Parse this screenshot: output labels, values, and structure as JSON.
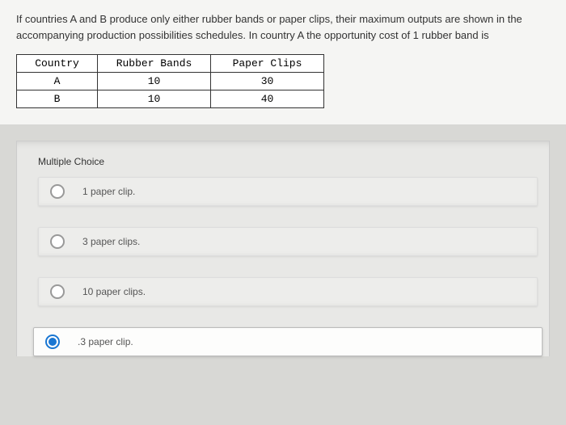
{
  "question": {
    "text": "If countries A and B produce only either rubber bands or paper clips, their maximum outputs are shown in the accompanying production possibilities schedules. In country A the opportunity cost of 1 rubber band is"
  },
  "table": {
    "headers": {
      "country": "Country",
      "rubber": "Rubber Bands",
      "paper": "Paper Clips"
    },
    "rows": [
      {
        "country": "A",
        "rubber": "10",
        "paper": "30"
      },
      {
        "country": "B",
        "rubber": "10",
        "paper": "40"
      }
    ]
  },
  "mc": {
    "label": "Multiple Choice",
    "options": [
      {
        "label": "1 paper clip.",
        "selected": false
      },
      {
        "label": "3 paper clips.",
        "selected": false
      },
      {
        "label": "10 paper clips.",
        "selected": false
      },
      {
        "label": ".3 paper clip.",
        "selected": true
      }
    ]
  }
}
